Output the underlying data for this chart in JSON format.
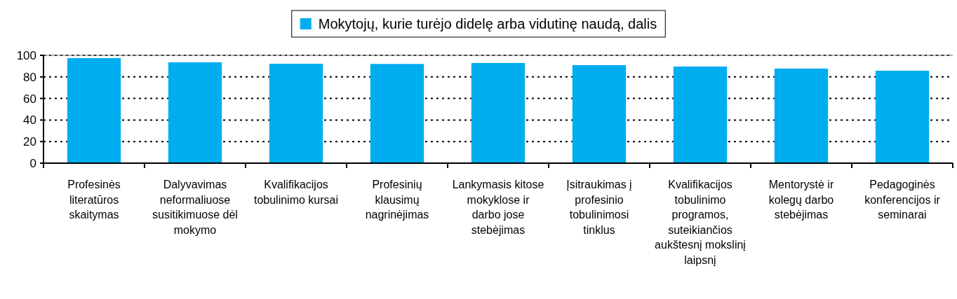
{
  "chart_data": {
    "type": "bar",
    "categories": [
      "Profesinės literatūros skaitymas",
      "Dalyvavimas neformaliuose susitikimuose dėl mokymo",
      "Kvalifikacijos tobulinimo kursai",
      "Profesinių klausimų nagrinėjimas",
      "Lankymasis kitose mokyklose ir darbo jose stebėjimas",
      "Įsitraukimas į profesinio tobulinimosi tinklus",
      "Kvalifikacijos tobulinimo programos, suteikiančios aukštesnį mokslinį laipsnį",
      "Mentorystė ir kolegų darbo stebėjimas",
      "Pedagoginės konferencijos ir seminarai"
    ],
    "series": [
      {
        "name": "Mokytojų, kurie turėjo didelę arba vidutinę naudą, dalis",
        "color": "#00adef",
        "values": [
          97.4,
          93.5,
          92.2,
          92,
          92.9,
          90.9,
          89.6,
          87.7,
          85.7
        ]
      }
    ],
    "ylim": [
      0,
      100
    ],
    "yticks": [
      0,
      20,
      40,
      60,
      80,
      100
    ],
    "grid": "y",
    "legend": "top"
  }
}
